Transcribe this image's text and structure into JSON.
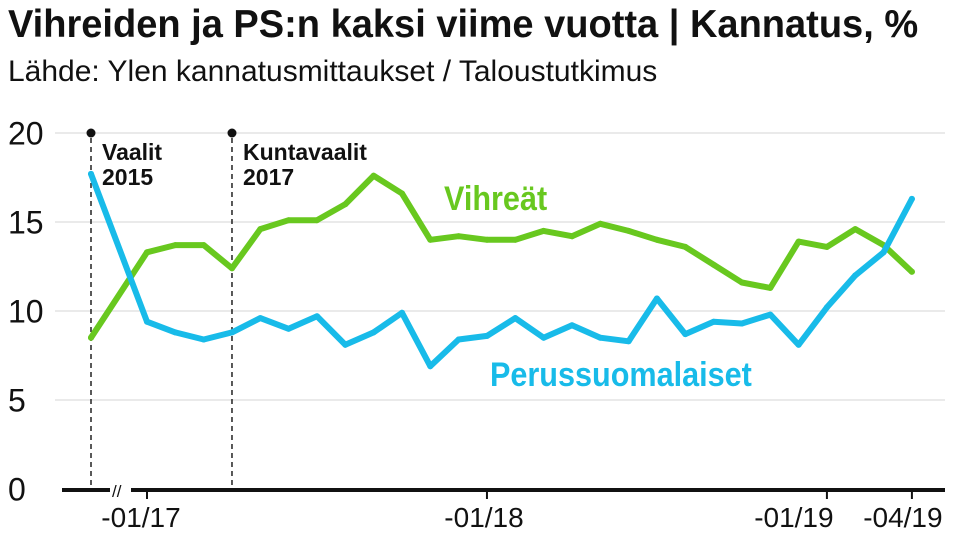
{
  "chart_data": {
    "type": "line",
    "title": "Vihreiden ja PS:n kaksi viime vuotta | Kannatus, %",
    "subtitle": "Lähde: Ylen kannatusmittaukset / Taloustutkimus",
    "ylim": [
      0,
      20
    ],
    "y_ticks": [
      0,
      5,
      10,
      15,
      20
    ],
    "grid": true,
    "axis_break": "//",
    "x": [
      -21,
      0,
      1,
      2,
      3,
      4,
      5,
      6,
      7,
      8,
      9,
      10,
      11,
      12,
      13,
      14,
      15,
      16,
      17,
      18,
      19,
      20,
      21,
      22,
      23,
      24,
      25,
      26,
      27
    ],
    "x_tick_labels": [
      {
        "label": "-01/17",
        "x": 0
      },
      {
        "label": "-01/18",
        "x": 12
      },
      {
        "label": "-01/19",
        "x": 24
      },
      {
        "label": "-04/19",
        "x": 27
      }
    ],
    "events": [
      {
        "title": "Vaalit",
        "year": "2015",
        "x": -21
      },
      {
        "title": "Kuntavaalit",
        "year": "2017",
        "x": 3
      }
    ],
    "series": [
      {
        "name": "Vihreät",
        "color": "#68c81f",
        "values": [
          8.5,
          13.3,
          13.7,
          13.7,
          12.4,
          14.6,
          15.1,
          15.1,
          16.0,
          17.6,
          16.6,
          14.0,
          14.2,
          14.0,
          14.0,
          14.5,
          14.2,
          14.9,
          14.5,
          14.0,
          13.6,
          12.6,
          11.6,
          11.3,
          13.9,
          13.6,
          14.6,
          13.7,
          12.2
        ]
      },
      {
        "name": "Perussuomalaiset",
        "color": "#18bbe9",
        "values": [
          17.7,
          9.4,
          8.8,
          8.4,
          8.8,
          9.6,
          9.0,
          9.7,
          8.1,
          8.8,
          9.9,
          6.9,
          8.4,
          8.6,
          9.6,
          8.5,
          9.2,
          8.5,
          8.3,
          10.7,
          8.7,
          9.4,
          9.3,
          9.8,
          8.1,
          10.2,
          12.0,
          13.3,
          16.3
        ]
      }
    ]
  }
}
